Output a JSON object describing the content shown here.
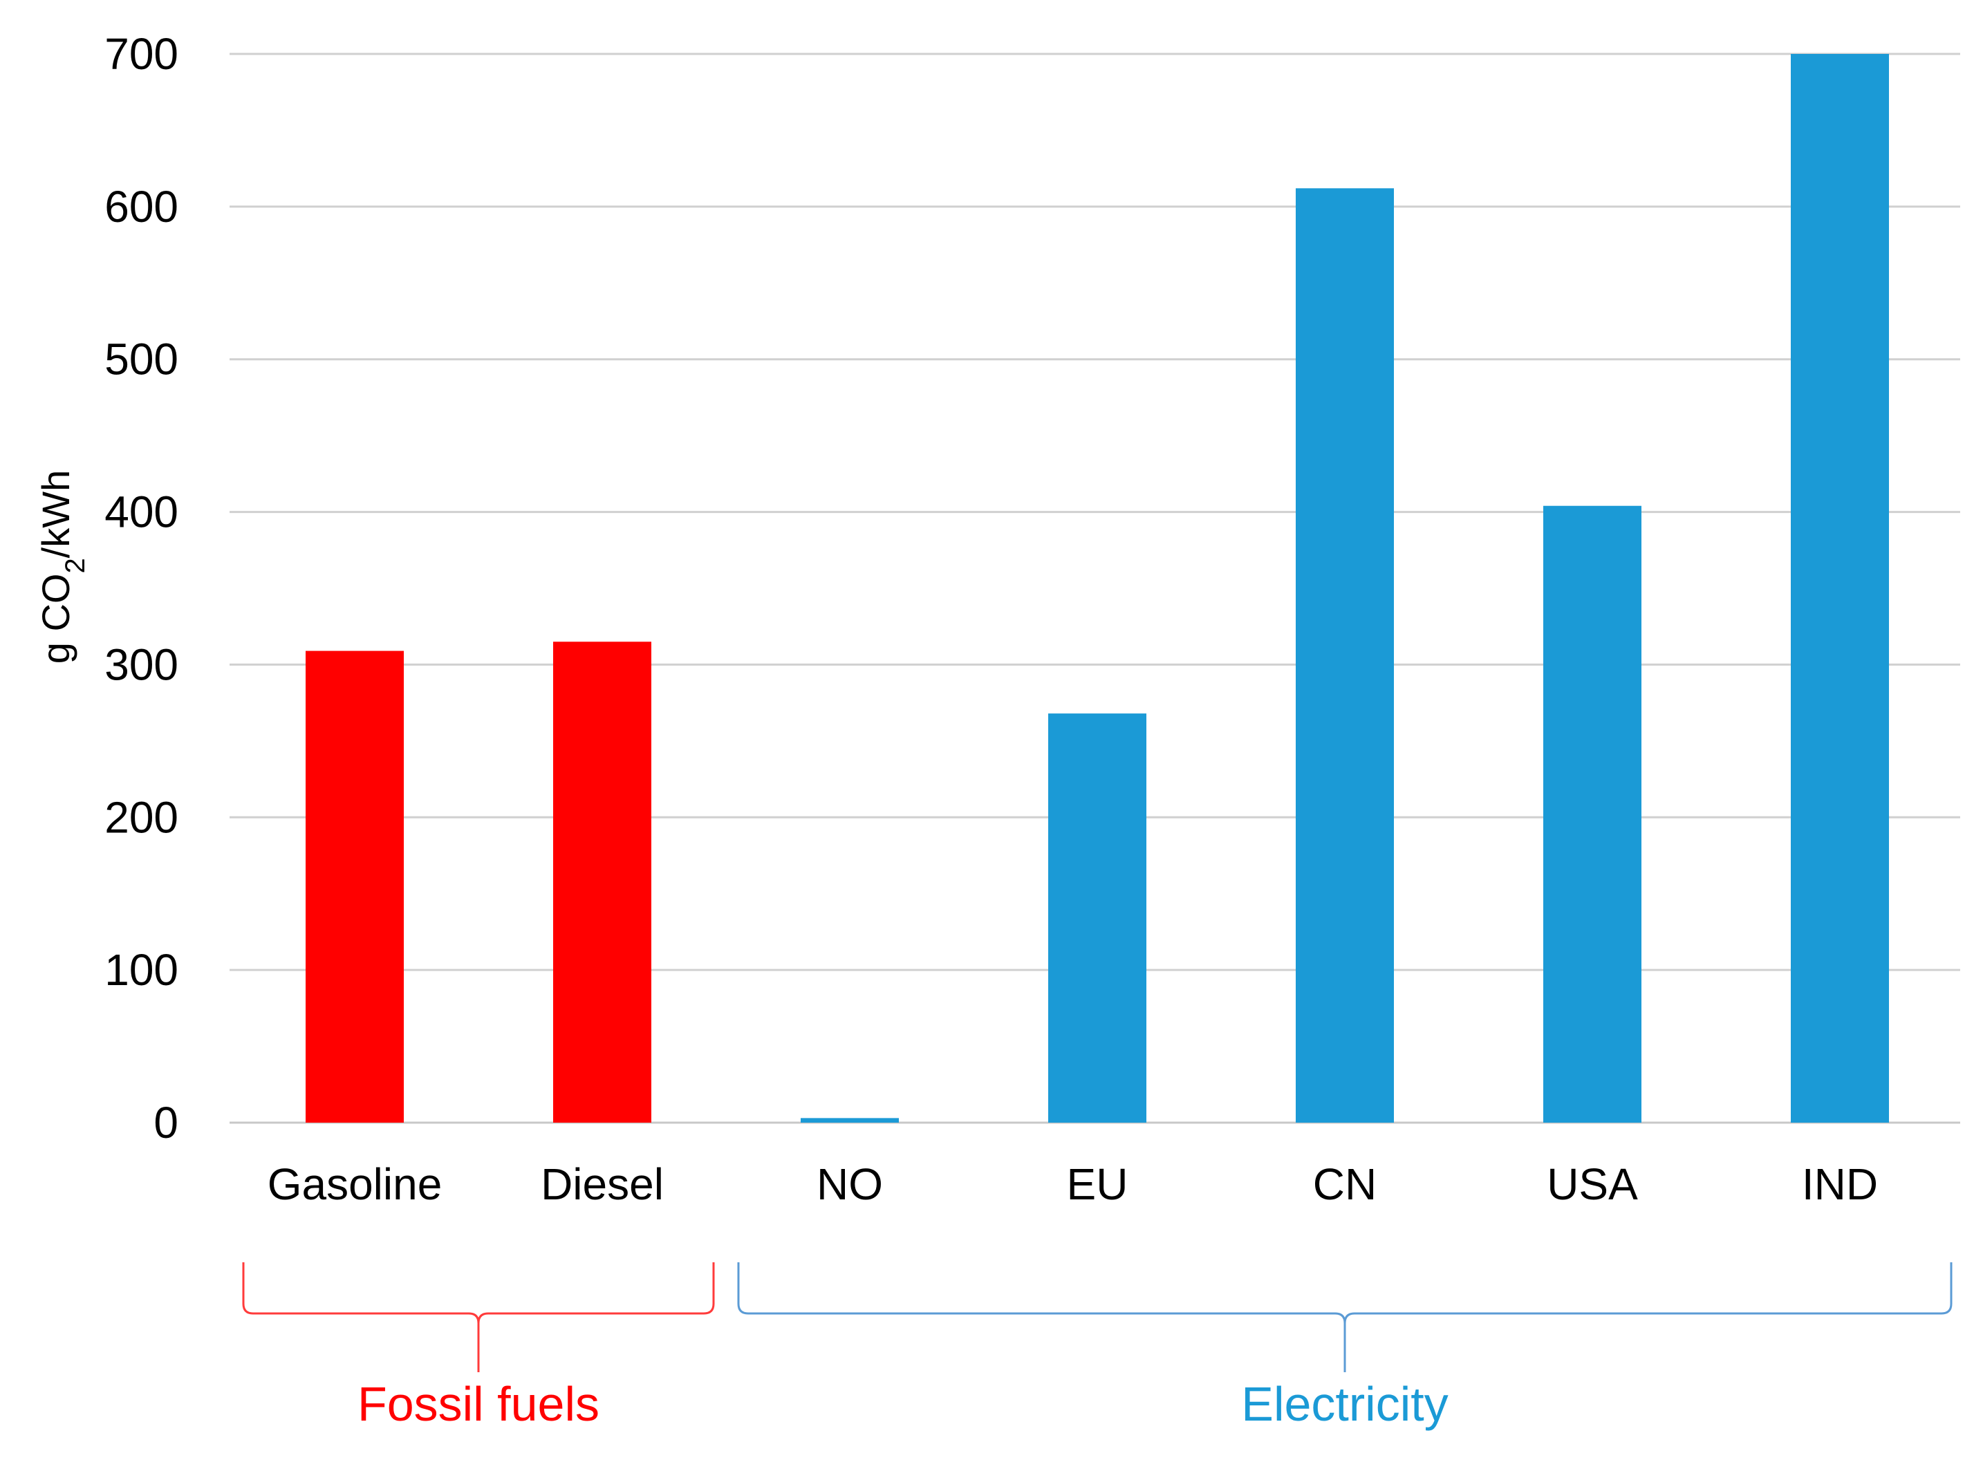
{
  "chart_data": {
    "type": "bar",
    "title": "",
    "xlabel": "",
    "ylabel": {
      "prefix": "g CO",
      "subscript": "2",
      "suffix": "/kWh"
    },
    "ylim": [
      0,
      700
    ],
    "yticks": [
      0,
      100,
      200,
      300,
      400,
      500,
      600,
      700
    ],
    "grid": true,
    "categories": [
      "Gasoline",
      "Diesel",
      "NO",
      "EU",
      "CN",
      "USA",
      "IND"
    ],
    "values": [
      309,
      315,
      3,
      268,
      612,
      404,
      700
    ],
    "bar_groups": [
      "fossil",
      "fossil",
      "electricity",
      "electricity",
      "electricity",
      "electricity",
      "electricity"
    ],
    "groups": [
      {
        "key": "fossil",
        "label": "Fossil fuels",
        "color": "#ff0000",
        "bracket_color": "#ff3b3b",
        "start_index": 0,
        "end_index": 1
      },
      {
        "key": "electricity",
        "label": "Electricity",
        "color": "#1b9ad6",
        "bracket_color": "#5b9bd5",
        "start_index": 2,
        "end_index": 6
      }
    ]
  }
}
